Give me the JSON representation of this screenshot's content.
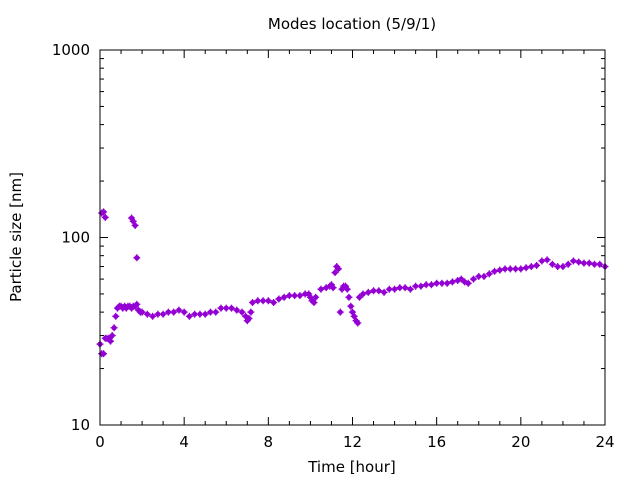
{
  "chart_data": {
    "type": "scatter",
    "title": "Modes location (5/9/1)",
    "xlabel": "Time [hour]",
    "ylabel": "Particle size [nm]",
    "xlim": [
      0,
      24
    ],
    "ylim": [
      10,
      1000
    ],
    "yscale": "log",
    "grid": false,
    "legend": "none",
    "x_ticks": [
      0,
      4,
      8,
      12,
      16,
      20,
      24
    ],
    "x_tick_labels": [
      "0",
      "4",
      "8",
      "12",
      "16",
      "20",
      "24"
    ],
    "y_ticks": [
      10,
      100,
      1000
    ],
    "y_tick_labels": [
      "10",
      "100",
      "1000"
    ],
    "marker_color": "#9400d3",
    "series": [
      {
        "x": [
          0.0,
          0.08,
          0.17,
          0.25,
          0.33,
          0.42,
          0.5,
          0.58,
          0.67,
          0.75,
          0.83,
          0.92,
          1.0,
          1.08,
          1.17,
          1.25,
          1.33,
          1.42,
          1.5,
          1.58,
          1.67,
          1.75,
          1.83,
          1.92,
          2.0,
          2.25,
          2.5,
          2.75,
          3.0,
          3.25,
          3.5,
          3.75,
          4.0,
          4.25,
          4.5,
          4.75,
          5.0,
          5.25,
          5.5,
          5.75,
          6.0,
          6.25,
          6.5,
          6.75,
          6.92,
          7.0,
          7.08,
          7.17,
          7.25,
          7.5,
          7.75,
          8.0,
          8.25,
          8.5,
          8.75,
          9.0,
          9.25,
          9.5,
          9.75,
          9.92,
          10.0,
          10.08,
          10.17,
          10.25,
          10.5,
          10.75,
          10.92,
          11.0,
          11.08,
          11.17,
          11.25,
          11.33,
          11.42,
          11.5,
          11.58,
          11.67,
          11.75,
          11.83,
          11.92,
          12.0,
          12.08,
          12.17,
          12.25,
          12.33,
          12.5,
          12.75,
          13.0,
          13.25,
          13.5,
          13.75,
          14.0,
          14.25,
          14.5,
          14.75,
          15.0,
          15.25,
          15.5,
          15.75,
          16.0,
          16.25,
          16.5,
          16.75,
          17.0,
          17.17,
          17.33,
          17.5,
          17.75,
          18.0,
          18.25,
          18.5,
          18.75,
          19.0,
          19.25,
          19.5,
          19.75,
          20.0,
          20.25,
          20.5,
          20.75,
          21.0,
          21.25,
          21.5,
          21.75,
          22.0,
          22.25,
          22.5,
          22.75,
          23.0,
          23.25,
          23.5,
          23.75,
          24.0,
          0.08,
          0.17,
          0.25,
          1.5,
          1.58,
          1.67,
          1.75
        ],
        "y": [
          27,
          24,
          24,
          29,
          29,
          29,
          28,
          30,
          33,
          38,
          42,
          43,
          43,
          42,
          43,
          42,
          43,
          43,
          42,
          43,
          43,
          44,
          41,
          40,
          40,
          39,
          38,
          39,
          39,
          40,
          40,
          41,
          40,
          38,
          39,
          39,
          39,
          40,
          40,
          42,
          42,
          42,
          41,
          40,
          38,
          36,
          37,
          40,
          45,
          46,
          46,
          46,
          45,
          47,
          48,
          49,
          49,
          49,
          50,
          50,
          48,
          46,
          45,
          48,
          53,
          54,
          55,
          56,
          54,
          65,
          70,
          68,
          40,
          53,
          55,
          55,
          53,
          48,
          43,
          40,
          38,
          36,
          35,
          48,
          50,
          51,
          52,
          52,
          51,
          53,
          53,
          54,
          54,
          53,
          55,
          55,
          56,
          56,
          57,
          57,
          57,
          58,
          59,
          60,
          58,
          57,
          60,
          62,
          62,
          64,
          66,
          67,
          68,
          68,
          68,
          68,
          69,
          70,
          71,
          75,
          76,
          72,
          70,
          70,
          72,
          75,
          74,
          73,
          73,
          72,
          72,
          70,
          135,
          137,
          128,
          127,
          122,
          116,
          78
        ]
      }
    ]
  }
}
